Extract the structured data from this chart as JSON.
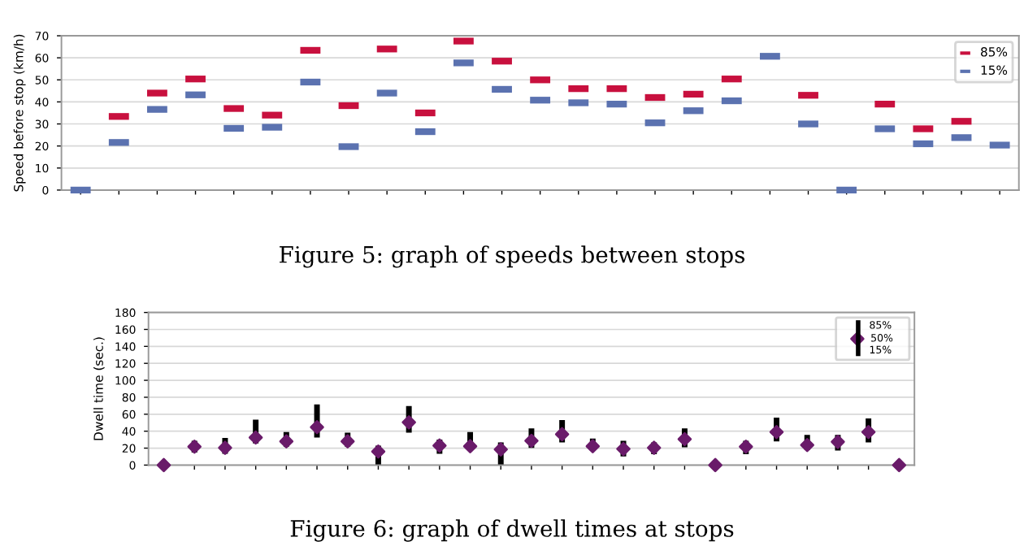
{
  "chart_data": [
    {
      "type": "scatter",
      "ylabel": "Speed before stop (km/h)",
      "categories": [
        null,
        null,
        null,
        null,
        null,
        null,
        null,
        null,
        null,
        null,
        null,
        null,
        null,
        null,
        null,
        null,
        null,
        null,
        null,
        null,
        null,
        null,
        null,
        null,
        null
      ],
      "series": [
        {
          "name": "85%",
          "color": "#c8103e",
          "values": [
            null,
            33.4,
            44,
            50.4,
            37,
            34,
            63.4,
            38.3,
            64,
            35,
            67.6,
            58.5,
            50,
            46,
            46,
            42,
            43.5,
            50.4,
            null,
            43,
            null,
            39,
            27.8,
            31.2,
            null
          ]
        },
        {
          "name": "15%",
          "color": "#5b72b0",
          "values": [
            0,
            21.6,
            36.6,
            43.2,
            28,
            28.5,
            49,
            19.7,
            44,
            26.5,
            57.7,
            45.7,
            40.8,
            39.6,
            39,
            30.5,
            36,
            40.5,
            60.7,
            30,
            0,
            27.8,
            21,
            23.8,
            20.4
          ]
        }
      ],
      "ylim": [
        0,
        70
      ],
      "yticks": [
        0,
        10,
        20,
        30,
        40,
        50,
        60,
        70
      ],
      "grid": "y",
      "legend": "top right",
      "annotations": [
        "Figure 5: graph of speeds between stops"
      ]
    },
    {
      "type": "scatter",
      "ylabel": "Dwell time (sec.)",
      "categories": [
        null,
        null,
        null,
        null,
        null,
        null,
        null,
        null,
        null,
        null,
        null,
        null,
        null,
        null,
        null,
        null,
        null,
        null,
        null,
        null,
        null,
        null,
        null,
        null,
        null
      ],
      "series": [
        {
          "name": "50%",
          "color": "#6a1b6a",
          "values": [
            0,
            21.7,
            20.4,
            32.5,
            28,
            44.7,
            28,
            16,
            50.4,
            23,
            22.3,
            18.5,
            28.7,
            36.4,
            22.3,
            19,
            20.4,
            30.6,
            0,
            21.7,
            39,
            23.6,
            27.4,
            39,
            0
          ],
          "errors": [
            null,
            [
              14.7,
              28.7
            ],
            [
              13.4,
              32
            ],
            [
              25.5,
              53.6
            ],
            [
              21.7,
              39
            ],
            [
              32.5,
              71.5
            ],
            [
              21.7,
              38.3
            ],
            [
              0,
              23
            ],
            [
              38.3,
              69.6
            ],
            [
              13.4,
              30
            ],
            [
              16.6,
              39
            ],
            [
              0,
              26.8
            ],
            [
              20.4,
              43.4
            ],
            [
              26.8,
              53
            ],
            [
              16.6,
              31.3
            ],
            [
              10.2,
              28.7
            ],
            [
              12.8,
              26.8
            ],
            [
              21,
              43.4
            ],
            null,
            [
              12.8,
              28.7
            ],
            [
              28,
              56
            ],
            [
              17.9,
              35.7
            ],
            [
              17.2,
              35.7
            ],
            [
              26.8,
              55
            ],
            null
          ]
        }
      ],
      "ylim": [
        0,
        180
      ],
      "yticks": [
        0,
        20,
        40,
        60,
        80,
        100,
        120,
        140,
        160,
        180
      ],
      "grid": "y",
      "legend": "top right",
      "annotations": [
        "85%",
        "15%",
        "Figure 6: graph of dwell times at stops"
      ]
    }
  ]
}
